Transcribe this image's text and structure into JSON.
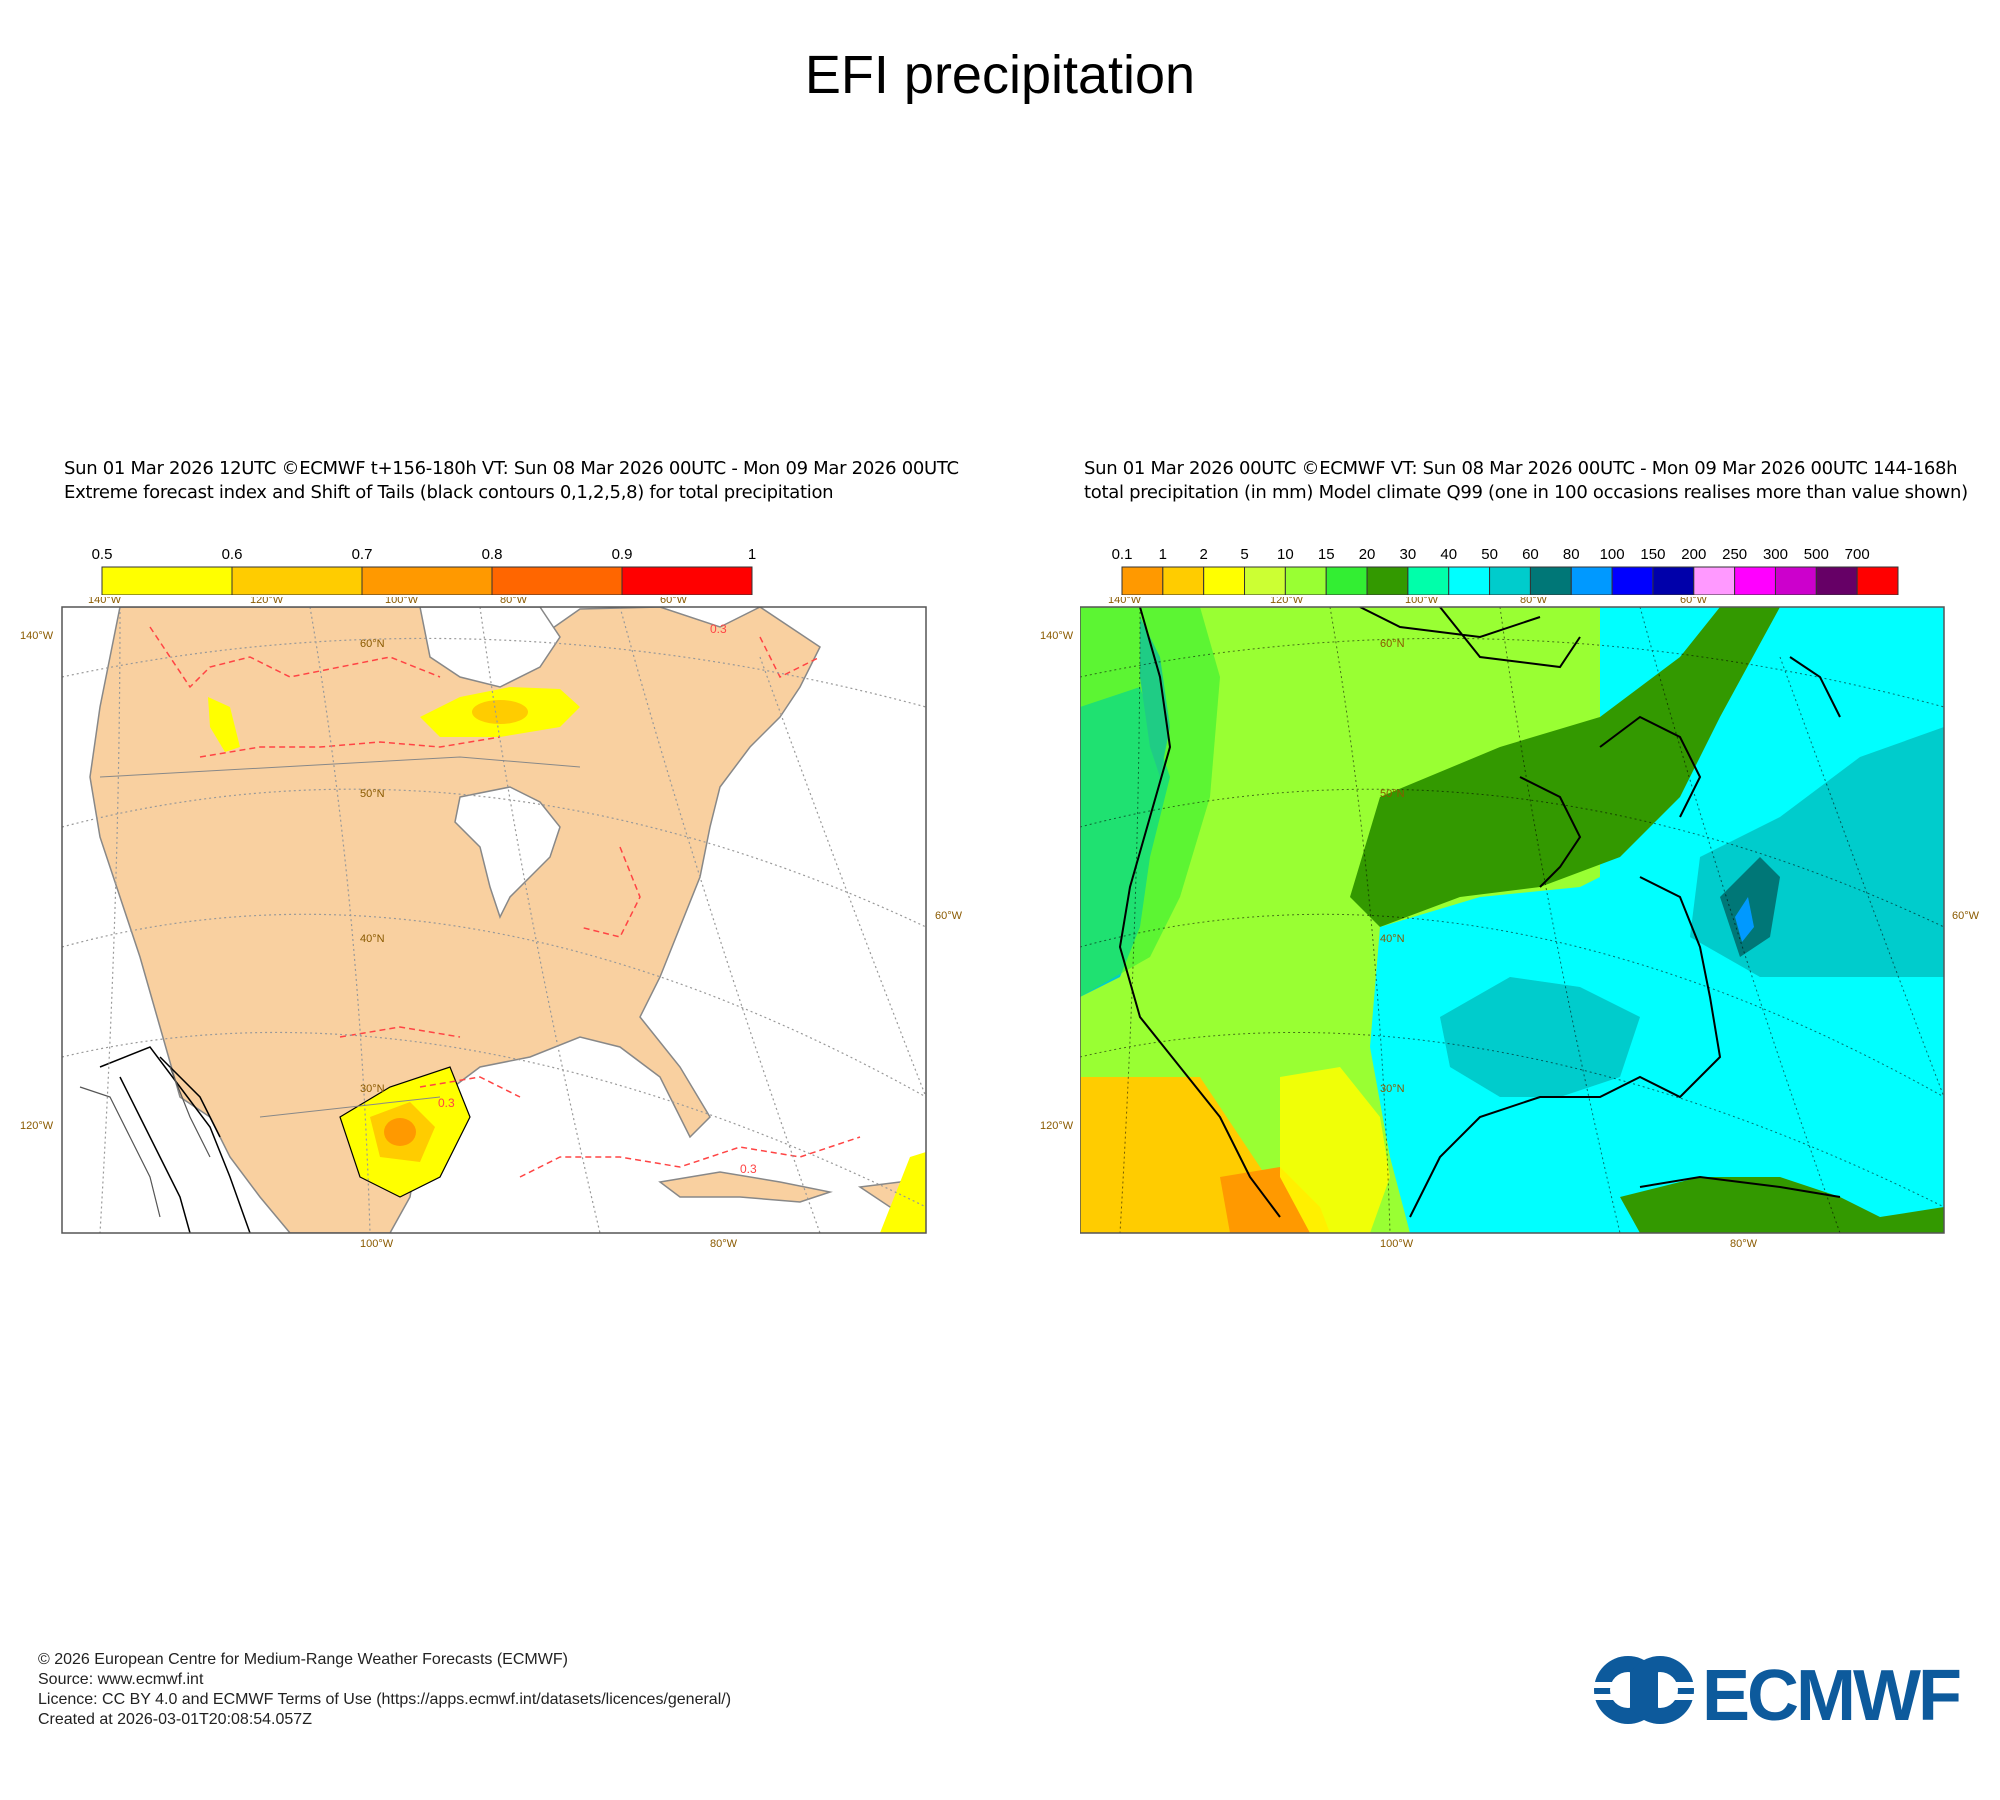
{
  "title": "EFI precipitation",
  "left_panel": {
    "header_line1": "Sun 01 Mar 2026 12UTC ©ECMWF t+156-180h  VT: Sun 08 Mar 2026 00UTC - Mon 09 Mar 2026 00UTC",
    "header_line2": "Extreme forecast index and Shift of Tails (black contours 0,1,2,5,8) for total precipitation",
    "colorbar": {
      "labels": [
        "0.5",
        "0.6",
        "0.7",
        "0.8",
        "0.9",
        "1"
      ],
      "colors": [
        "#ffff00",
        "#ffcc00",
        "#ff9900",
        "#ff6600",
        "#ff0000"
      ]
    },
    "contour_label": "0.3",
    "top_lon_labels": [
      "140°W",
      "120°W",
      "100°W",
      "80°W",
      "60°W"
    ],
    "bottom_lon_labels": [
      "100°W",
      "80°W"
    ],
    "left_labels": [
      "140°W",
      "120°W"
    ],
    "right_labels": [
      "60°W"
    ],
    "lat_labels": [
      "60°N",
      "50°N",
      "40°N",
      "30°N"
    ],
    "colors": {
      "land": "#f9d0a0",
      "ocean": "#ffffff",
      "efi_low": "#ffff00",
      "efi_mid": "#ffcc00",
      "efi_high": "#ff9900",
      "contour": "#ff4444"
    }
  },
  "right_panel": {
    "header_line1": "Sun 01 Mar 2026 00UTC ©ECMWF VT: Sun 08 Mar 2026 00UTC - Mon 09 Mar 2026 00UTC   144-168h",
    "header_line2": "total precipitation (in mm)  Model climate Q99 (one in 100 occasions realises more than value shown)",
    "colorbar": {
      "labels": [
        "0.1",
        "1",
        "2",
        "5",
        "10",
        "15",
        "20",
        "30",
        "40",
        "50",
        "60",
        "80",
        "100",
        "150",
        "200",
        "250",
        "300",
        "500",
        "700"
      ],
      "colors": [
        "#ff9900",
        "#ffcc00",
        "#ffff00",
        "#ccff33",
        "#99ff33",
        "#33ee33",
        "#339900",
        "#00ffaa",
        "#00ffff",
        "#00cccc",
        "#007777",
        "#0099ff",
        "#0000ff",
        "#0000aa",
        "#ff99ff",
        "#ff00ff",
        "#cc00cc",
        "#660066",
        "#ff0000"
      ]
    },
    "top_lon_labels": [
      "140°W",
      "120°W",
      "100°W",
      "80°W",
      "60°W"
    ],
    "bottom_lon_labels": [
      "100°W",
      "80°W"
    ],
    "left_labels": [
      "140°W",
      "120°W"
    ],
    "right_labels": [
      "60°W"
    ],
    "lat_labels": [
      "60°N",
      "50°N",
      "40°N",
      "30°N"
    ]
  },
  "footer": {
    "line1": "© 2026 European Centre for Medium-Range Weather Forecasts (ECMWF)",
    "line2": "Source: www.ecmwf.int",
    "line3": "Licence: CC BY 4.0 and ECMWF Terms of Use (https://apps.ecmwf.int/datasets/licences/general/)",
    "line4": "Created at 2026-03-01T20:08:54.057Z"
  },
  "logo": {
    "text": "ECMWF",
    "color": "#0d5a9c"
  }
}
